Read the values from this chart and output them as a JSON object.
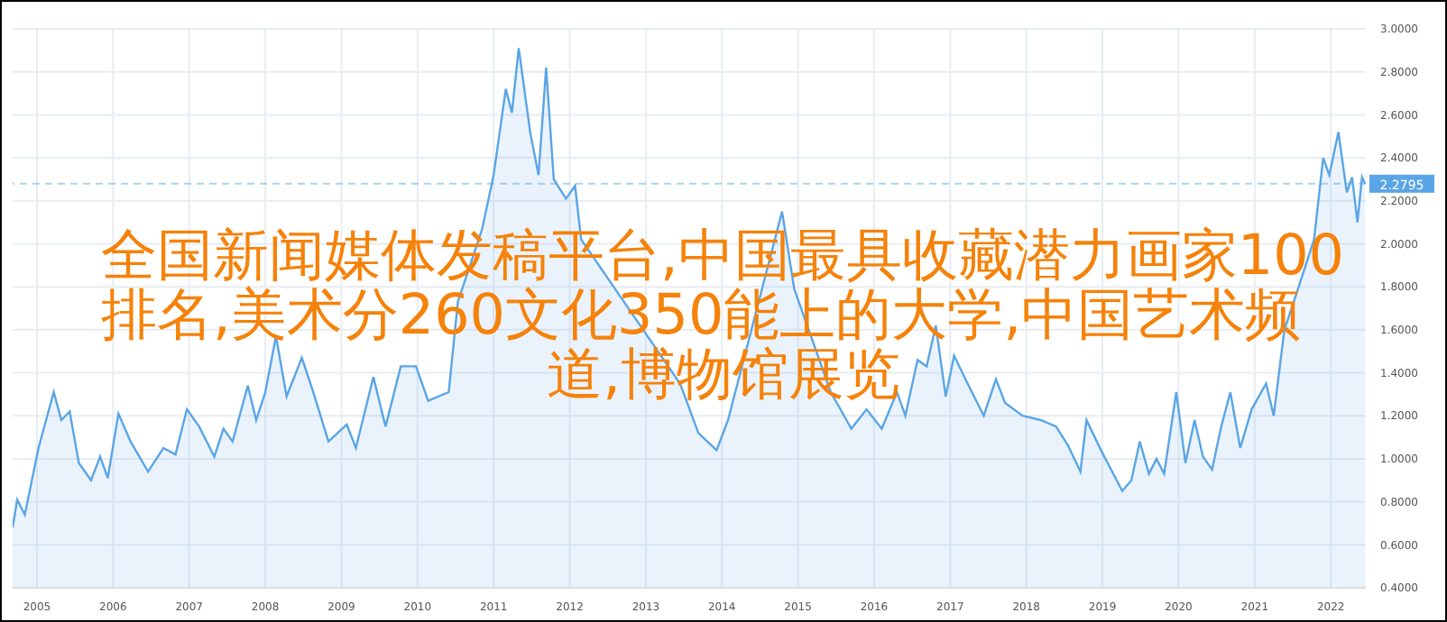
{
  "chart_data": {
    "type": "area",
    "title": "全国新闻媒体发稿平台,中国最具收藏潜力画家100排名,美术分260文化350能上的大学,中国艺术频道,博物馆展览",
    "x": [
      2004.68,
      2004.74,
      2004.84,
      2005.02,
      2005.22,
      2005.32,
      2005.43,
      2005.55,
      2005.71,
      2005.83,
      2005.93,
      2006.07,
      2006.23,
      2006.46,
      2006.66,
      2006.82,
      2006.97,
      2007.13,
      2007.33,
      2007.45,
      2007.57,
      2007.77,
      2007.88,
      2008.0,
      2008.14,
      2008.28,
      2008.48,
      2008.63,
      2008.83,
      2009.07,
      2009.19,
      2009.42,
      2009.58,
      2009.78,
      2009.98,
      2010.14,
      2010.41,
      2010.53,
      2010.85,
      2011.0,
      2011.16,
      2011.24,
      2011.33,
      2011.48,
      2011.59,
      2011.69,
      2011.79,
      2011.95,
      2012.07,
      2012.15,
      2013.45,
      2013.69,
      2013.93,
      2014.08,
      2014.79,
      2014.95,
      2015.43,
      2015.7,
      2015.9,
      2016.1,
      2016.3,
      2016.41,
      2016.57,
      2016.69,
      2016.81,
      2016.94,
      2017.05,
      2017.2,
      2017.44,
      2017.6,
      2017.72,
      2017.95,
      2018.19,
      2018.39,
      2018.55,
      2018.71,
      2018.79,
      2018.98,
      2019.26,
      2019.38,
      2019.49,
      2019.61,
      2019.71,
      2019.81,
      2019.97,
      2020.09,
      2020.21,
      2020.32,
      2020.44,
      2020.56,
      2020.68,
      2020.81,
      2020.96,
      2021.15,
      2021.25,
      2021.39,
      2021.55,
      2021.78,
      2021.9,
      2021.98,
      2022.1,
      2022.21,
      2022.28,
      2022.35,
      2022.41,
      2022.45
    ],
    "series": [
      {
        "color": "#5aa5e6",
        "values": [
          0.68,
          0.81,
          0.74,
          1.05,
          1.31,
          1.18,
          1.22,
          0.98,
          0.9,
          1.01,
          0.91,
          1.21,
          1.08,
          0.94,
          1.05,
          1.02,
          1.23,
          1.15,
          1.01,
          1.14,
          1.08,
          1.34,
          1.18,
          1.31,
          1.57,
          1.29,
          1.47,
          1.31,
          1.08,
          1.16,
          1.05,
          1.38,
          1.15,
          1.43,
          1.43,
          1.27,
          1.31,
          1.73,
          2.07,
          2.32,
          2.72,
          2.61,
          2.91,
          2.52,
          2.32,
          2.82,
          2.3,
          2.21,
          2.27,
          2.02,
          1.35,
          1.12,
          1.04,
          1.18,
          2.15,
          1.79,
          1.31,
          1.14,
          1.23,
          1.14,
          1.31,
          1.2,
          1.46,
          1.43,
          1.62,
          1.29,
          1.48,
          1.37,
          1.2,
          1.37,
          1.26,
          1.2,
          1.18,
          1.15,
          1.06,
          0.94,
          1.18,
          1.04,
          0.85,
          0.9,
          1.08,
          0.93,
          1.0,
          0.93,
          1.31,
          0.98,
          1.18,
          1.01,
          0.95,
          1.15,
          1.31,
          1.05,
          1.23,
          1.35,
          1.2,
          1.6,
          1.77,
          2.02,
          2.4,
          2.32,
          2.52,
          2.24,
          2.31,
          2.1,
          2.31,
          2.28
        ]
      }
    ],
    "xlim": [
      2004.68,
      2022.46
    ],
    "xticks": [
      2005,
      2006,
      2007,
      2008,
      2009,
      2010,
      2011,
      2012,
      2013,
      2014,
      2015,
      2016,
      2017,
      2018,
      2019,
      2020,
      2021,
      2022
    ],
    "ylim": [
      0.4,
      3.0
    ],
    "yticks": [
      {
        "value": 0.4,
        "label": "0.4000"
      },
      {
        "value": 0.6,
        "label": "0.6000"
      },
      {
        "value": 0.8,
        "label": "0.8000"
      },
      {
        "value": 1.0,
        "label": "1.0000"
      },
      {
        "value": 1.2,
        "label": "1.2000"
      },
      {
        "value": 1.4,
        "label": "1.4000"
      },
      {
        "value": 1.6,
        "label": "1.6000"
      },
      {
        "value": 1.8,
        "label": "1.8000"
      },
      {
        "value": 2.0,
        "label": "2.0000"
      },
      {
        "value": 2.2,
        "label": "2.2000"
      },
      {
        "value": 2.4,
        "label": "2.4000"
      },
      {
        "value": 2.6,
        "label": "2.6000"
      },
      {
        "value": 2.8,
        "label": "2.8000"
      },
      {
        "value": 3.0,
        "label": "3.0000"
      }
    ],
    "grid": true,
    "ref_lines": [
      {
        "axis": "y",
        "value": 2.2795,
        "label": "2.2795",
        "color": "#5aa5e6",
        "line_style": "dashed"
      }
    ]
  }
}
